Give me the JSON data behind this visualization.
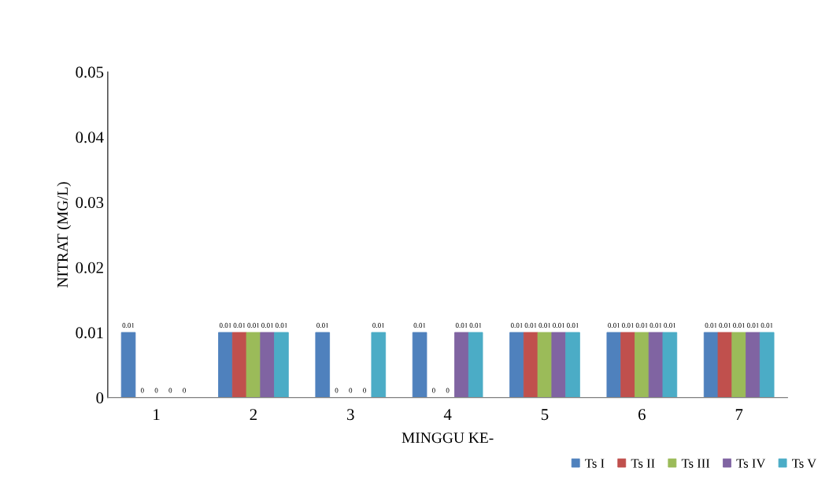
{
  "chart_data": {
    "type": "bar",
    "xlabel": "MINGGU KE-",
    "ylabel": "NITRAT (MG/L)",
    "categories": [
      "1",
      "2",
      "3",
      "4",
      "5",
      "6",
      "7"
    ],
    "series": [
      {
        "name": "Ts I",
        "color": "#4f81bd",
        "values": [
          0.01,
          0.01,
          0.01,
          0.01,
          0.01,
          0.01,
          0.01
        ]
      },
      {
        "name": "Ts II",
        "color": "#c0504d",
        "values": [
          0,
          0.01,
          0,
          0,
          0.01,
          0.01,
          0.01
        ]
      },
      {
        "name": "Ts III",
        "color": "#9bbb59",
        "values": [
          0,
          0.01,
          0,
          0,
          0.01,
          0.01,
          0.01
        ]
      },
      {
        "name": "Ts IV",
        "color": "#8064a2",
        "values": [
          0,
          0.01,
          0,
          0.01,
          0.01,
          0.01,
          0.01
        ]
      },
      {
        "name": "Ts V",
        "color": "#4bacc6",
        "values": [
          0,
          0.01,
          0.01,
          0.01,
          0.01,
          0.01,
          0.01
        ]
      }
    ],
    "ylim": [
      0,
      0.05
    ],
    "yticks": [
      0,
      0.01,
      0.02,
      0.03,
      0.04,
      0.05
    ],
    "data_labels": true,
    "grid": false,
    "legend": "bottom right"
  }
}
